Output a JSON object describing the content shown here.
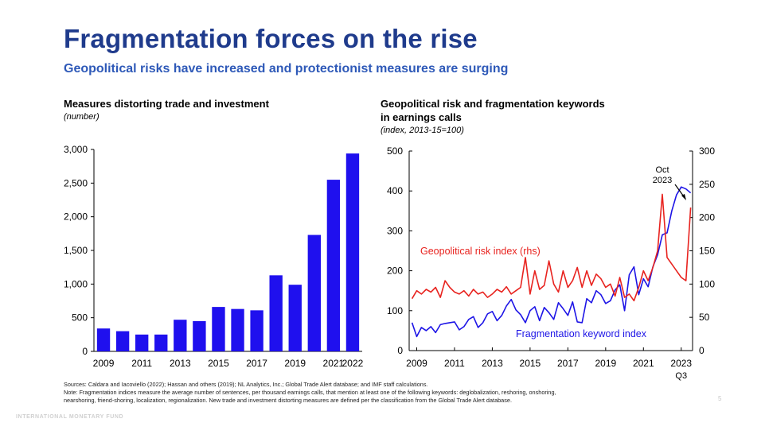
{
  "header": {
    "title": "Fragmentation forces on the rise",
    "subtitle": "Geopolitical risks have increased and protectionist measures are surging"
  },
  "chart_data": [
    {
      "type": "bar",
      "title": "Measures distorting trade and investment",
      "unit": "(number)",
      "color": "#1f10ee",
      "categories": [
        "2009",
        "2010",
        "2011",
        "2012",
        "2013",
        "2014",
        "2015",
        "2016",
        "2017",
        "2018",
        "2019",
        "2020",
        "2021",
        "2022"
      ],
      "values": [
        340,
        300,
        250,
        250,
        470,
        450,
        660,
        630,
        610,
        1130,
        990,
        1730,
        2550,
        2940
      ],
      "ylim": [
        0,
        3000
      ],
      "yticks": [
        0,
        500,
        1000,
        1500,
        2000,
        2500,
        3000
      ],
      "ytick_labels": [
        "0",
        "500",
        "1,000",
        "1,500",
        "2,000",
        "2,500",
        "3,000"
      ],
      "xtick_labels": [
        "2009",
        "2011",
        "2013",
        "2015",
        "2017",
        "2019",
        "2021",
        "2022"
      ]
    },
    {
      "type": "line",
      "title": "Geopolitical risk and fragmentation keywords in earnings calls",
      "title_line1": "Geopolitical risk and fragmentation keywords",
      "title_line2": "in earnings calls",
      "unit": "(index, 2013-15=100)",
      "xlim": [
        2008.6,
        2023.6
      ],
      "ylim_left": [
        0,
        500
      ],
      "ylim_right": [
        0,
        300
      ],
      "yticks_left": [
        "0",
        "100",
        "200",
        "300",
        "400",
        "500"
      ],
      "yticks_right": [
        "0",
        "50",
        "100",
        "150",
        "200",
        "250",
        "300"
      ],
      "xtick_labels": [
        "2009",
        "2011",
        "2013",
        "2015",
        "2017",
        "2019",
        "2021",
        "2023"
      ],
      "xtick_sub": "Q3",
      "annotation_line1": "Oct",
      "annotation_line2": "2023",
      "series": [
        {
          "name": "Fragmentation keyword index",
          "axis": "left",
          "color": "#1d14e6",
          "x": [
            2008.75,
            2009.0,
            2009.25,
            2009.5,
            2009.75,
            2010.0,
            2010.25,
            2010.5,
            2010.75,
            2011.0,
            2011.25,
            2011.5,
            2011.75,
            2012.0,
            2012.25,
            2012.5,
            2012.75,
            2013.0,
            2013.25,
            2013.5,
            2013.75,
            2014.0,
            2014.25,
            2014.5,
            2014.75,
            2015.0,
            2015.25,
            2015.5,
            2015.75,
            2016.0,
            2016.25,
            2016.5,
            2016.75,
            2017.0,
            2017.25,
            2017.5,
            2017.75,
            2018.0,
            2018.25,
            2018.5,
            2018.75,
            2019.0,
            2019.25,
            2019.5,
            2019.75,
            2020.0,
            2020.25,
            2020.5,
            2020.75,
            2021.0,
            2021.25,
            2021.5,
            2021.75,
            2022.0,
            2022.25,
            2022.5,
            2022.75,
            2023.0,
            2023.25,
            2023.5
          ],
          "values": [
            70,
            35,
            58,
            50,
            60,
            45,
            65,
            68,
            70,
            72,
            52,
            60,
            78,
            85,
            58,
            70,
            92,
            98,
            75,
            88,
            112,
            128,
            102,
            90,
            70,
            100,
            110,
            75,
            108,
            95,
            78,
            120,
            105,
            88,
            122,
            72,
            70,
            130,
            120,
            150,
            140,
            118,
            125,
            152,
            165,
            100,
            190,
            210,
            140,
            180,
            160,
            210,
            240,
            290,
            295,
            350,
            390,
            410,
            405,
            395
          ],
          "ytick_labels": []
        },
        {
          "name": "Geopolitical risk index (rhs)",
          "axis": "right",
          "color": "#e8231f",
          "x": [
            2008.75,
            2009.0,
            2009.25,
            2009.5,
            2009.75,
            2010.0,
            2010.25,
            2010.5,
            2010.75,
            2011.0,
            2011.25,
            2011.5,
            2011.75,
            2012.0,
            2012.25,
            2012.5,
            2012.75,
            2013.0,
            2013.25,
            2013.5,
            2013.75,
            2014.0,
            2014.25,
            2014.5,
            2014.75,
            2015.0,
            2015.25,
            2015.5,
            2015.75,
            2016.0,
            2016.25,
            2016.5,
            2016.75,
            2017.0,
            2017.25,
            2017.5,
            2017.75,
            2018.0,
            2018.25,
            2018.5,
            2018.75,
            2019.0,
            2019.25,
            2019.5,
            2019.75,
            2020.0,
            2020.25,
            2020.5,
            2020.75,
            2021.0,
            2021.25,
            2021.5,
            2021.75,
            2022.0,
            2022.25,
            2022.5,
            2022.75,
            2023.0,
            2023.25,
            2023.5
          ],
          "values": [
            78,
            90,
            85,
            92,
            88,
            95,
            80,
            105,
            95,
            88,
            85,
            90,
            82,
            92,
            85,
            88,
            80,
            85,
            92,
            88,
            96,
            85,
            90,
            95,
            140,
            85,
            120,
            92,
            98,
            135,
            100,
            88,
            120,
            95,
            105,
            125,
            95,
            120,
            98,
            115,
            108,
            95,
            100,
            82,
            110,
            80,
            85,
            75,
            95,
            120,
            105,
            125,
            150,
            235,
            140,
            130,
            120,
            110,
            105,
            215
          ]
        }
      ],
      "labels": {
        "geo_label": "Geopolitical risk index (rhs)",
        "frag_label": "Fragmentation keyword index"
      }
    }
  ],
  "notes": {
    "sources": "Sources: Caldara and Iacoviello (2022); Hassan and others (2019); NL Analytics, Inc.; Global Trade Alert database; and IMF staff calculations.",
    "note_line1": "Note: Fragmentation indices measure the average number of sentences, per thousand earnings calls, that mention at least one of the following keywords: deglobalization, reshoring, onshoring,",
    "note_line2": "nearshoring, friend-shoring, localization, regionalization. New trade and investment distorting measures are defined per the classification from the Global Trade Alert database."
  },
  "footer": {
    "org": "INTERNATIONAL MONETARY FUND",
    "page": "5"
  }
}
